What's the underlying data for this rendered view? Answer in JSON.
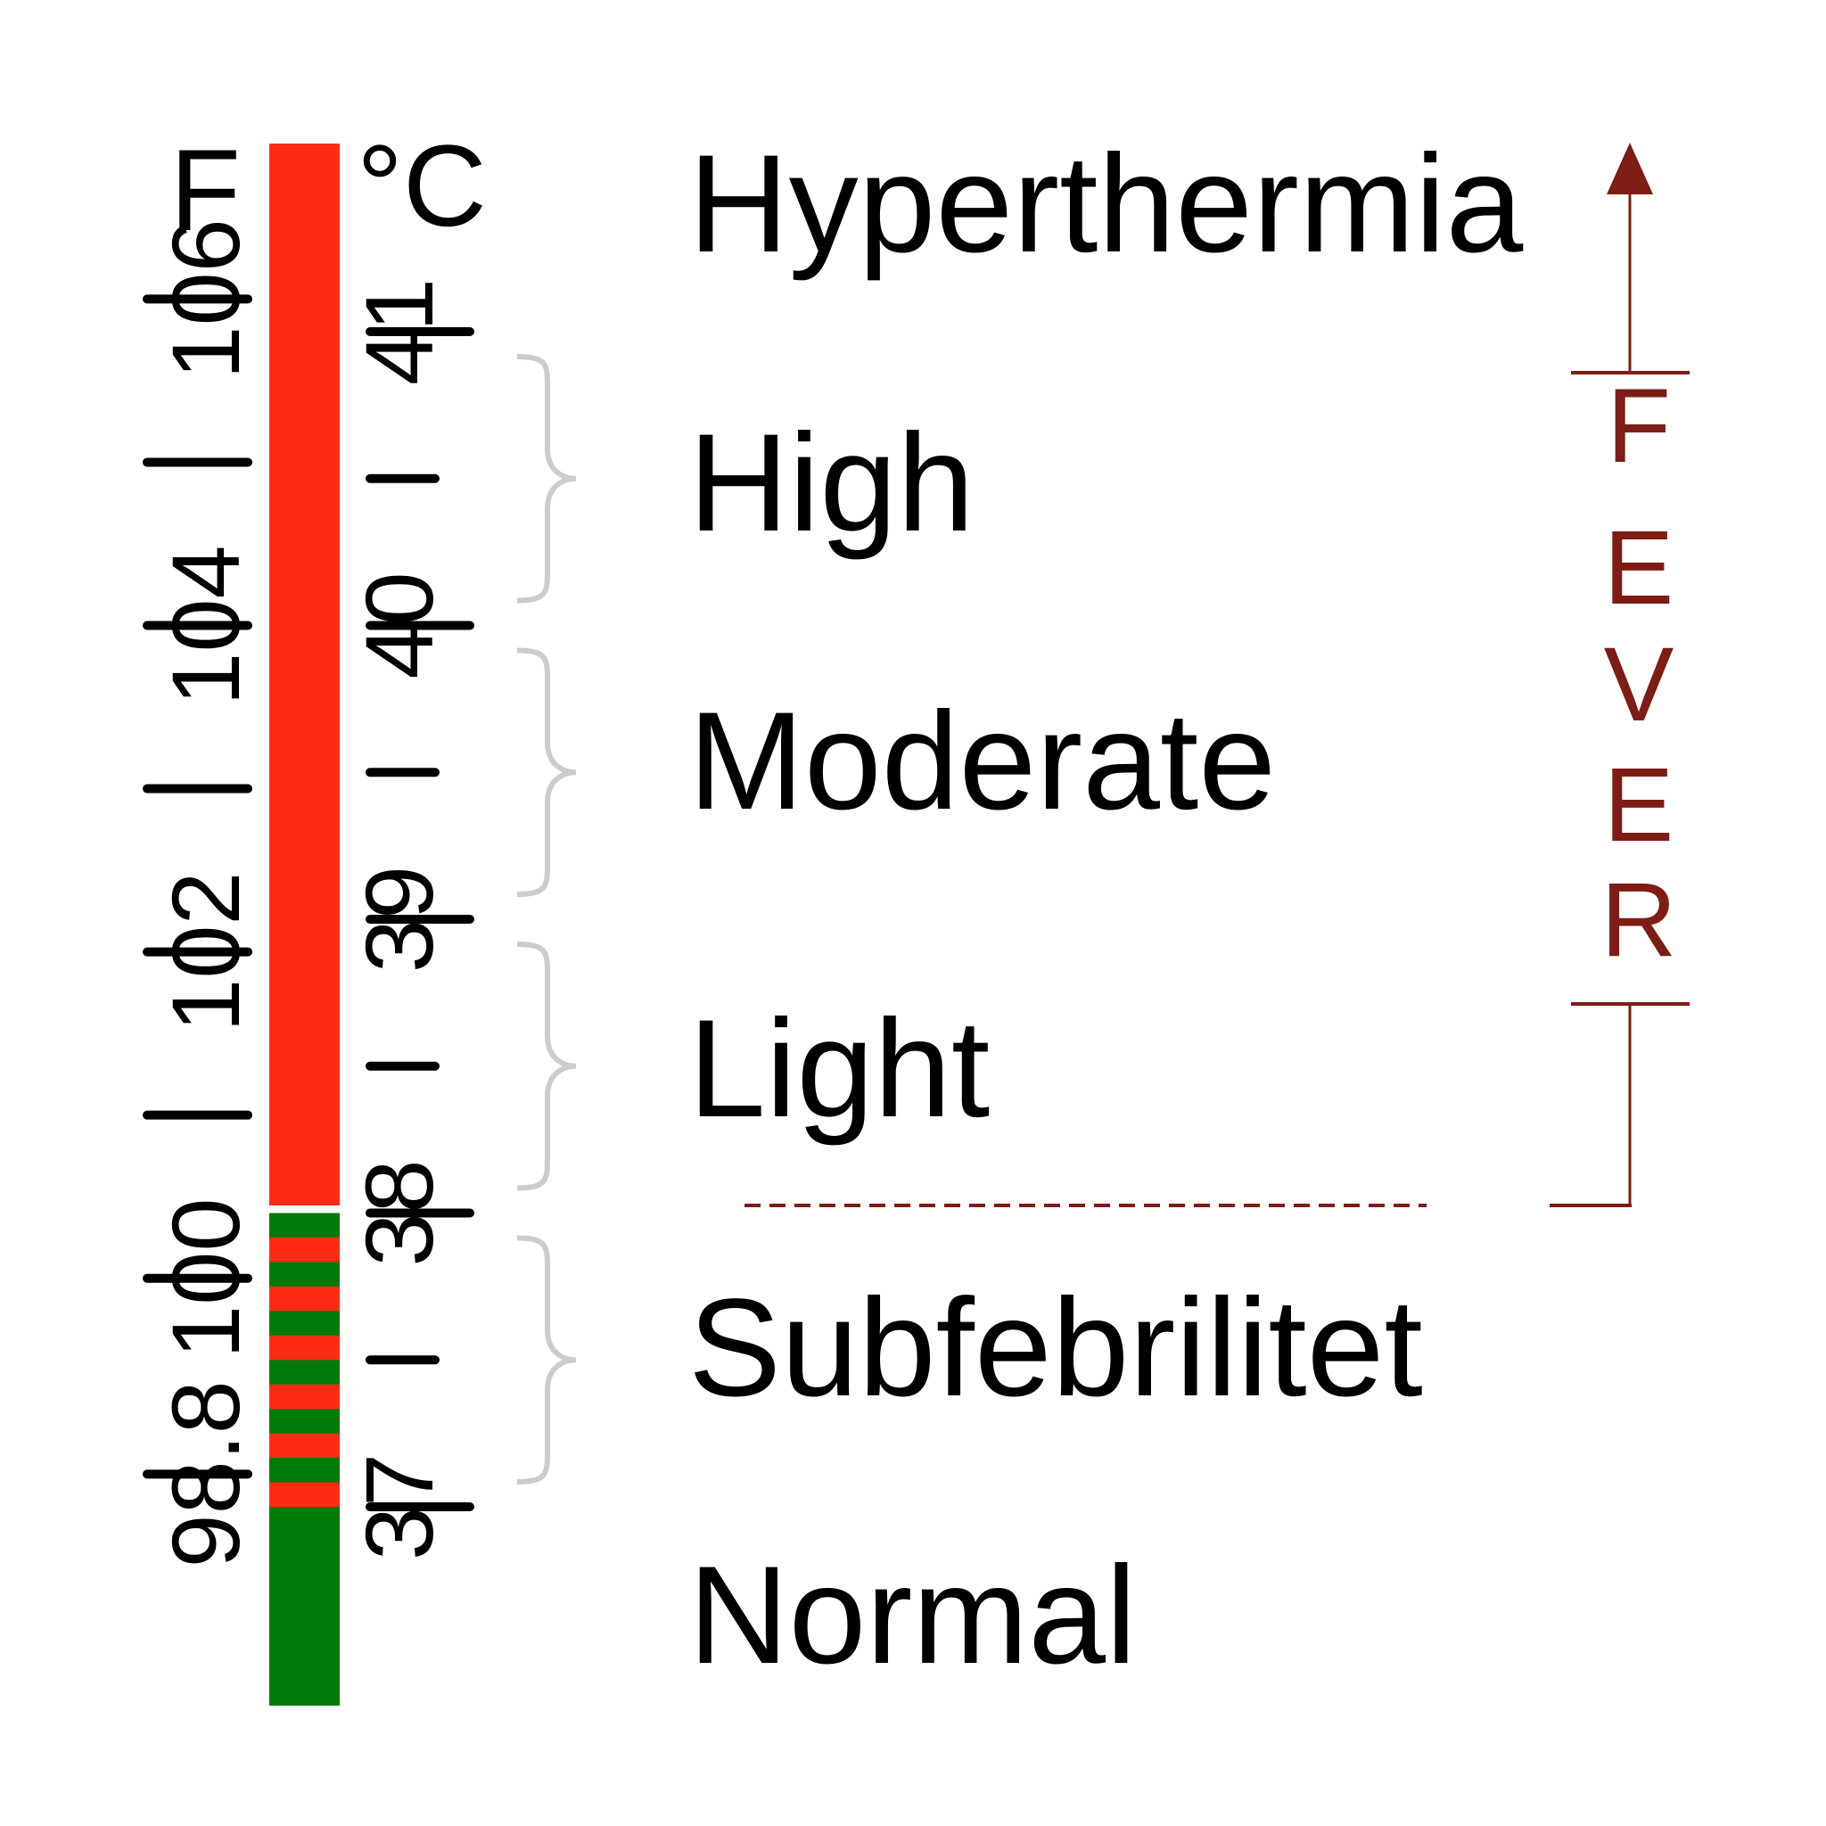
{
  "units": {
    "fahrenheit": "F",
    "celsius": "°C"
  },
  "colors": {
    "fever_red": "#ff2c14",
    "normal_green": "#007a0a",
    "fever_marker": "#7d1d16",
    "brace_gray": "#cccccc",
    "text": "#000000"
  },
  "fahrenheit_ticks": [
    {
      "value": 106,
      "label": "106"
    },
    {
      "value": 105,
      "label": ""
    },
    {
      "value": 104,
      "label": "104"
    },
    {
      "value": 103,
      "label": ""
    },
    {
      "value": 102,
      "label": "102"
    },
    {
      "value": 101,
      "label": ""
    },
    {
      "value": 100,
      "label": "100"
    },
    {
      "value": 98.8,
      "label": "98.8"
    }
  ],
  "celsius_ticks": [
    {
      "value": 41,
      "label": "41"
    },
    {
      "value": 40.5,
      "label": ""
    },
    {
      "value": 40,
      "label": "40"
    },
    {
      "value": 39.5,
      "label": ""
    },
    {
      "value": 39,
      "label": "39"
    },
    {
      "value": 38.5,
      "label": ""
    },
    {
      "value": 38,
      "label": "38"
    },
    {
      "value": 37.5,
      "label": ""
    },
    {
      "value": 37,
      "label": "37"
    }
  ],
  "bar": {
    "fever_from_celsius": 38,
    "normal_below_celsius": 37,
    "stripe_zone": [
      37,
      38
    ]
  },
  "categories": [
    {
      "key": "hyperthermia",
      "label": "Hyperthermia",
      "brace": false
    },
    {
      "key": "high",
      "label": "High",
      "brace": true,
      "range_celsius": [
        40,
        41
      ]
    },
    {
      "key": "moderate",
      "label": "Moderate",
      "brace": true,
      "range_celsius": [
        39,
        40
      ]
    },
    {
      "key": "light",
      "label": "Light",
      "brace": true,
      "range_celsius": [
        38,
        39
      ]
    },
    {
      "key": "subfebrilitet",
      "label": "Subfebrilitet",
      "brace": true,
      "range_celsius": [
        37,
        38
      ]
    },
    {
      "key": "normal",
      "label": "Normal",
      "brace": false
    }
  ],
  "fever_marker": {
    "letters": [
      "F",
      "E",
      "V",
      "E",
      "R"
    ],
    "range_celsius": [
      38,
      41
    ]
  }
}
